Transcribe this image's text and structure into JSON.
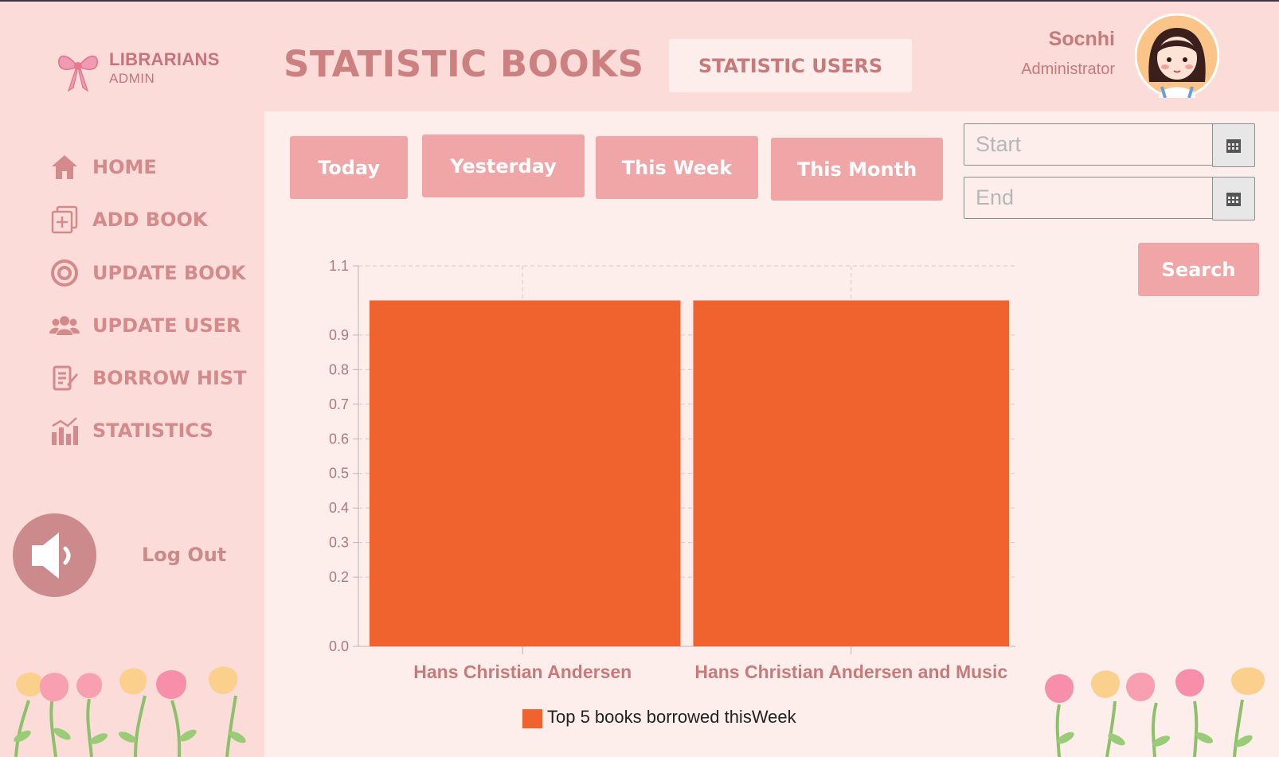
{
  "brand": {
    "name": "LIBRARIANS",
    "role": "ADMIN"
  },
  "header": {
    "title": "STATISTIC BOOKS",
    "tab_users_label": "STATISTIC USERS"
  },
  "user": {
    "name": "Socnhi",
    "role": "Administrator"
  },
  "sidebar": {
    "items": [
      {
        "label": "HOME",
        "icon": "home-icon"
      },
      {
        "label": "ADD BOOK",
        "icon": "add-book-icon"
      },
      {
        "label": "UPDATE BOOK",
        "icon": "update-book-icon"
      },
      {
        "label": "UPDATE USER",
        "icon": "users-icon"
      },
      {
        "label": "BORROW HIST",
        "icon": "history-icon"
      },
      {
        "label": "STATISTICS",
        "icon": "statistics-icon"
      }
    ],
    "logout_label": "Log Out"
  },
  "filters": {
    "today": "Today",
    "yesterday": "Yesterday",
    "this_week": "This Week",
    "this_month": "This Month",
    "start_placeholder": "Start",
    "end_placeholder": "End",
    "search_label": "Search"
  },
  "colors": {
    "background": "#fcdcd9",
    "panel": "#fdeeec",
    "button": "#f0a6a6",
    "text_accent": "#c87a7a",
    "bar": "#f0622e"
  },
  "chart_data": {
    "type": "bar",
    "categories": [
      "Hans Christian Andersen",
      "Hans Christian Andersen and Music"
    ],
    "series": [
      {
        "name": "Top 5 books borrowed thisWeek",
        "values": [
          1.0,
          1.0
        ]
      }
    ],
    "yticks": [
      0.0,
      0.2,
      0.3,
      0.4,
      0.5,
      0.6,
      0.7,
      0.8,
      0.9,
      1.1
    ],
    "ylim": [
      0,
      1.1
    ],
    "grid": true,
    "legend_position": "bottom",
    "xlabel": "",
    "ylabel": "",
    "title": ""
  }
}
